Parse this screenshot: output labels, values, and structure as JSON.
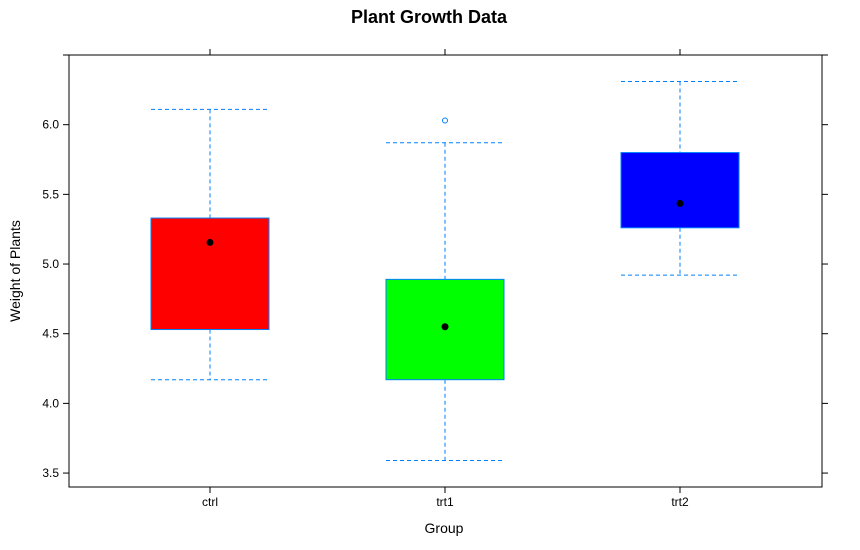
{
  "chart_data": {
    "type": "box",
    "title": "Plant Growth Data",
    "xlabel": "Group",
    "ylabel": "Weight of Plants",
    "ylim": [
      3.4,
      6.5
    ],
    "yticks": [
      3.5,
      4.0,
      4.5,
      5.0,
      5.5,
      6.0
    ],
    "ytick_labels": [
      "3.5",
      "4.0",
      "4.5",
      "5.0",
      "5.5",
      "6.0"
    ],
    "categories": [
      "ctrl",
      "trt1",
      "trt2"
    ],
    "boxes": [
      {
        "group": "ctrl",
        "fill": "#ff0000",
        "whisker_low": 4.17,
        "q1": 4.53,
        "median": 5.155,
        "q3": 5.33,
        "whisker_high": 6.11,
        "outliers": []
      },
      {
        "group": "trt1",
        "fill": "#00ff00",
        "whisker_low": 3.59,
        "q1": 4.17,
        "median": 4.55,
        "q3": 4.89,
        "whisker_high": 5.87,
        "outliers": [
          6.03
        ]
      },
      {
        "group": "trt2",
        "fill": "#0000ff",
        "whisker_low": 4.92,
        "q1": 5.26,
        "median": 5.435,
        "q3": 5.8,
        "whisker_high": 6.31,
        "outliers": []
      }
    ],
    "colors": {
      "whisker": "#0080ff",
      "box_border": "#0080ff",
      "median_dot": "#000000",
      "frame": "#000000"
    },
    "grid": false,
    "legend": "none"
  }
}
